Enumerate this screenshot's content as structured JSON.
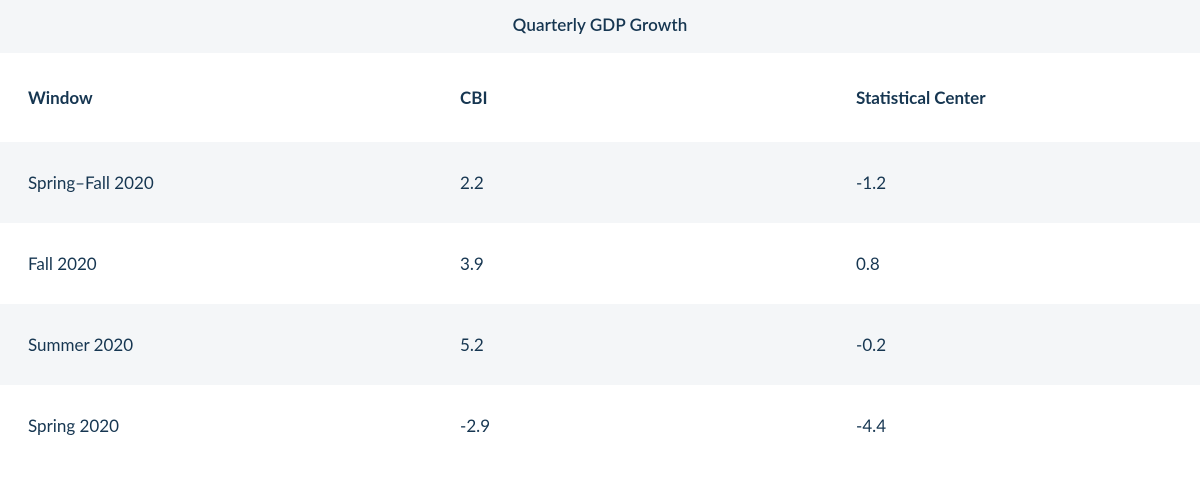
{
  "table": {
    "title": "Quarterly GDP Growth",
    "columns": [
      "Window",
      "CBI",
      "Statistical Center"
    ],
    "rows": [
      {
        "window": "Spring–Fall 2020",
        "cbi": "2.2",
        "stat": "-1.2"
      },
      {
        "window": "Fall 2020",
        "cbi": "3.9",
        "stat": "0.8"
      },
      {
        "window": "Summer 2020",
        "cbi": "5.2",
        "stat": "-0.2"
      },
      {
        "window": "Spring 2020",
        "cbi": "-2.9",
        "stat": "-4.4"
      }
    ],
    "style": {
      "text_color": "#163651",
      "band_bg": "#f4f6f8",
      "plain_bg": "#ffffff",
      "title_fontsize": 17,
      "header_fontsize": 17,
      "cell_fontsize": 17,
      "font_weight_header": 700,
      "font_weight_cell": 400,
      "column_widths_pct": [
        36,
        33,
        31
      ]
    }
  }
}
